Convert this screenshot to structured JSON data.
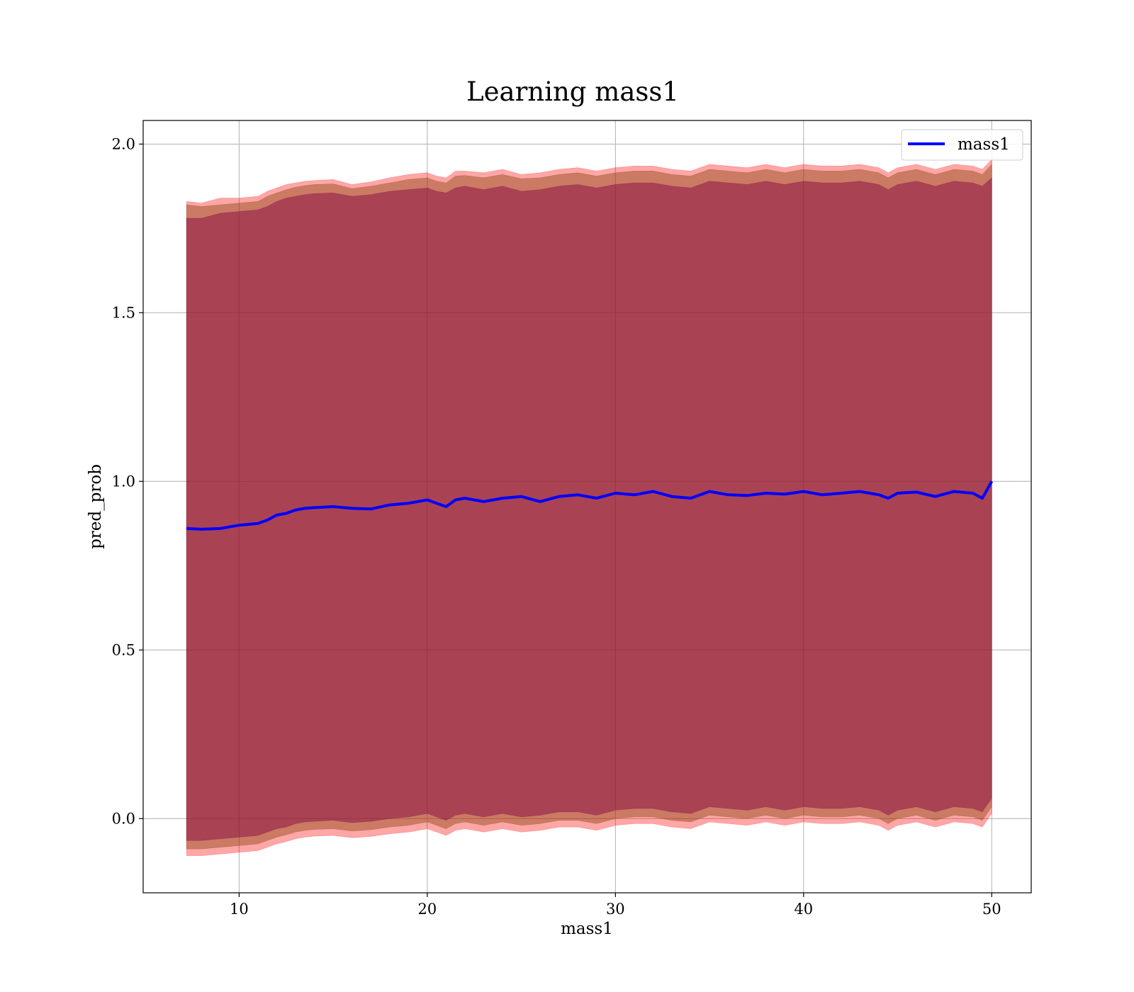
{
  "chart_data": {
    "type": "area",
    "title": "Learning mass1",
    "xlabel": "mass1",
    "ylabel": "pred_prob",
    "xlim": [
      4.9,
      52.1
    ],
    "ylim": [
      -0.22,
      2.07
    ],
    "xticks": [
      10,
      20,
      30,
      40,
      50
    ],
    "yticks": [
      0.0,
      0.5,
      1.0,
      1.5,
      2.0
    ],
    "xtick_labels": [
      "10",
      "20",
      "30",
      "40",
      50
    ],
    "ytick_labels": [
      "0.0",
      "0.5",
      "1.0",
      "1.5",
      "2.0"
    ],
    "grid": true,
    "legend": {
      "entries": [
        "mass1"
      ],
      "placement": "upper right"
    },
    "colors": {
      "line": "#0000ff",
      "outer_band": "#ff0000",
      "middle_band": "#8b4513",
      "inner_band": "#800040",
      "grid": "#b0b0b0",
      "axes": "#000000"
    },
    "x": [
      7.2,
      8.0,
      9.0,
      10.0,
      11.0,
      11.5,
      12.0,
      12.5,
      13.0,
      13.5,
      14.0,
      15.0,
      16.0,
      17.0,
      18.0,
      19.0,
      20.0,
      20.5,
      21.0,
      21.5,
      22.0,
      23.0,
      24.0,
      25.0,
      26.0,
      27.0,
      28.0,
      29.0,
      30.0,
      31.0,
      32.0,
      33.0,
      34.0,
      35.0,
      36.0,
      37.0,
      38.0,
      39.0,
      40.0,
      41.0,
      42.0,
      43.0,
      44.0,
      44.5,
      45.0,
      46.0,
      47.0,
      48.0,
      49.0,
      49.5,
      50.0
    ],
    "series": [
      {
        "name": "mass1",
        "values": [
          0.86,
          0.858,
          0.86,
          0.87,
          0.875,
          0.885,
          0.9,
          0.905,
          0.915,
          0.92,
          0.922,
          0.925,
          0.92,
          0.918,
          0.93,
          0.935,
          0.945,
          0.935,
          0.925,
          0.945,
          0.95,
          0.94,
          0.95,
          0.955,
          0.94,
          0.955,
          0.96,
          0.95,
          0.965,
          0.96,
          0.97,
          0.955,
          0.95,
          0.97,
          0.96,
          0.958,
          0.965,
          0.962,
          0.97,
          0.96,
          0.965,
          0.97,
          0.96,
          0.95,
          0.965,
          0.968,
          0.955,
          0.97,
          0.965,
          0.95,
          1.0
        ]
      }
    ],
    "bands": {
      "outer_upper": [
        1.83,
        1.825,
        1.84,
        1.84,
        1.845,
        1.86,
        1.87,
        1.88,
        1.885,
        1.89,
        1.892,
        1.895,
        1.88,
        1.888,
        1.9,
        1.91,
        1.915,
        1.905,
        1.9,
        1.92,
        1.92,
        1.915,
        1.925,
        1.91,
        1.915,
        1.925,
        1.93,
        1.92,
        1.93,
        1.935,
        1.935,
        1.925,
        1.92,
        1.94,
        1.935,
        1.93,
        1.94,
        1.93,
        1.94,
        1.935,
        1.935,
        1.94,
        1.93,
        1.915,
        1.93,
        1.94,
        1.925,
        1.94,
        1.935,
        1.925,
        1.955
      ],
      "middle_upper": [
        1.82,
        1.815,
        1.82,
        1.825,
        1.83,
        1.845,
        1.855,
        1.865,
        1.872,
        1.877,
        1.88,
        1.882,
        1.868,
        1.875,
        1.885,
        1.895,
        1.9,
        1.89,
        1.885,
        1.905,
        1.907,
        1.9,
        1.91,
        1.897,
        1.9,
        1.91,
        1.915,
        1.905,
        1.915,
        1.92,
        1.92,
        1.91,
        1.905,
        1.925,
        1.92,
        1.915,
        1.925,
        1.915,
        1.925,
        1.92,
        1.92,
        1.925,
        1.915,
        1.9,
        1.915,
        1.925,
        1.91,
        1.925,
        1.92,
        1.91,
        1.94
      ],
      "inner_upper": [
        1.78,
        1.78,
        1.795,
        1.8,
        1.805,
        1.815,
        1.83,
        1.84,
        1.845,
        1.85,
        1.853,
        1.855,
        1.845,
        1.85,
        1.86,
        1.865,
        1.87,
        1.86,
        1.855,
        1.87,
        1.875,
        1.865,
        1.875,
        1.86,
        1.865,
        1.875,
        1.88,
        1.87,
        1.88,
        1.885,
        1.885,
        1.875,
        1.87,
        1.89,
        1.885,
        1.88,
        1.89,
        1.88,
        1.89,
        1.885,
        1.885,
        1.89,
        1.88,
        1.865,
        1.88,
        1.89,
        1.875,
        1.89,
        1.885,
        1.875,
        1.9
      ],
      "inner_lower": [
        -0.065,
        -0.065,
        -0.06,
        -0.055,
        -0.05,
        -0.04,
        -0.03,
        -0.025,
        -0.015,
        -0.01,
        -0.008,
        -0.005,
        -0.012,
        -0.008,
        0.0,
        0.005,
        0.015,
        0.005,
        -0.005,
        0.01,
        0.015,
        0.005,
        0.015,
        0.005,
        0.01,
        0.02,
        0.02,
        0.01,
        0.025,
        0.03,
        0.03,
        0.02,
        0.015,
        0.035,
        0.03,
        0.025,
        0.035,
        0.025,
        0.035,
        0.03,
        0.03,
        0.035,
        0.025,
        0.01,
        0.025,
        0.035,
        0.02,
        0.035,
        0.03,
        0.02,
        0.06
      ],
      "middle_lower": [
        -0.09,
        -0.09,
        -0.085,
        -0.08,
        -0.075,
        -0.065,
        -0.055,
        -0.048,
        -0.04,
        -0.035,
        -0.032,
        -0.03,
        -0.037,
        -0.033,
        -0.025,
        -0.02,
        -0.01,
        -0.02,
        -0.03,
        -0.015,
        -0.01,
        -0.02,
        -0.01,
        -0.02,
        -0.015,
        -0.005,
        -0.005,
        -0.015,
        0.0,
        0.005,
        0.005,
        -0.005,
        -0.01,
        0.01,
        0.005,
        0.0,
        0.01,
        0.0,
        0.01,
        0.005,
        0.005,
        0.01,
        0.0,
        -0.015,
        0.0,
        0.01,
        -0.005,
        0.01,
        0.005,
        -0.005,
        0.035
      ],
      "outer_lower": [
        -0.11,
        -0.11,
        -0.105,
        -0.1,
        -0.095,
        -0.085,
        -0.075,
        -0.068,
        -0.06,
        -0.055,
        -0.052,
        -0.05,
        -0.057,
        -0.053,
        -0.045,
        -0.04,
        -0.03,
        -0.04,
        -0.05,
        -0.035,
        -0.03,
        -0.04,
        -0.03,
        -0.04,
        -0.035,
        -0.025,
        -0.025,
        -0.035,
        -0.02,
        -0.015,
        -0.015,
        -0.025,
        -0.03,
        -0.01,
        -0.015,
        -0.02,
        -0.01,
        -0.02,
        -0.01,
        -0.015,
        -0.015,
        -0.01,
        -0.02,
        -0.035,
        -0.02,
        -0.01,
        -0.025,
        -0.01,
        -0.015,
        -0.025,
        0.015
      ]
    }
  }
}
